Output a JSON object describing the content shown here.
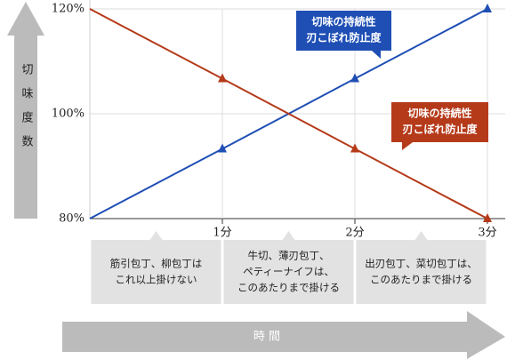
{
  "chart_data": {
    "type": "line",
    "ylabel": "切味度数",
    "xlabel": "時 間",
    "x": [
      0,
      1,
      2,
      3
    ],
    "xlim": [
      0,
      3
    ],
    "xticks": [
      {
        "value": 1,
        "label": "1分"
      },
      {
        "value": 2,
        "label": "2分"
      },
      {
        "value": 3,
        "label": "3分"
      }
    ],
    "ylim": [
      80,
      120
    ],
    "yticks": [
      {
        "value": 80,
        "label": "80%"
      },
      {
        "value": 100,
        "label": "100%"
      },
      {
        "value": 120,
        "label": "120%"
      }
    ],
    "grid": true,
    "series": [
      {
        "color": "#1f4fb5",
        "values": [
          80,
          93.3,
          106.7,
          120
        ],
        "callout": [
          "切味の持続性",
          "刃こぼれ防止度"
        ]
      },
      {
        "color": "#b53a1a",
        "values": [
          120,
          106.7,
          93.3,
          80
        ],
        "callout": [
          "切味の持続性",
          "刃こぼれ防止度"
        ]
      }
    ],
    "notes": [
      [
        "筋引包丁、柳包丁は",
        "これ以上掛けない"
      ],
      [
        "牛切、薄刃包丁、",
        "ペティーナイフは、",
        "このあたりまで掛ける"
      ],
      [
        "出刃包丁、菜切包丁は、",
        "このあたりまで掛ける"
      ]
    ]
  }
}
